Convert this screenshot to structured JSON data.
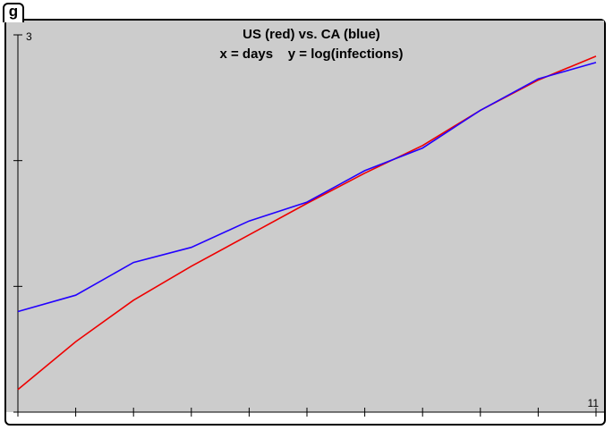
{
  "window": {
    "tab_label": "g"
  },
  "chart_data": {
    "type": "line",
    "title": "US (red) vs. CA (blue)",
    "subtitle": "x = days    y = log(infections)",
    "xlabel": "",
    "ylabel": "",
    "xlim": [
      1,
      11
    ],
    "ylim": [
      0,
      3
    ],
    "x_max_label": "11",
    "y_max_label": "3",
    "x_ticks": [
      1,
      2,
      3,
      4,
      5,
      6,
      7,
      8,
      9,
      10,
      11
    ],
    "y_ticks": [
      0,
      1,
      2,
      3
    ],
    "grid": false,
    "background": "#cccccc",
    "series": [
      {
        "color": "#ee0000",
        "x": [
          1,
          2,
          3,
          4,
          5,
          6,
          7,
          8,
          9,
          10,
          11
        ],
        "values": [
          0.18,
          0.56,
          0.89,
          1.16,
          1.41,
          1.66,
          1.9,
          2.12,
          2.4,
          2.64,
          2.83
        ]
      },
      {
        "color": "#2200ff",
        "x": [
          1,
          2,
          3,
          4,
          5,
          6,
          7,
          8,
          9,
          10,
          11
        ],
        "values": [
          0.8,
          0.93,
          1.19,
          1.31,
          1.52,
          1.67,
          1.92,
          2.1,
          2.4,
          2.65,
          2.78
        ]
      }
    ]
  }
}
